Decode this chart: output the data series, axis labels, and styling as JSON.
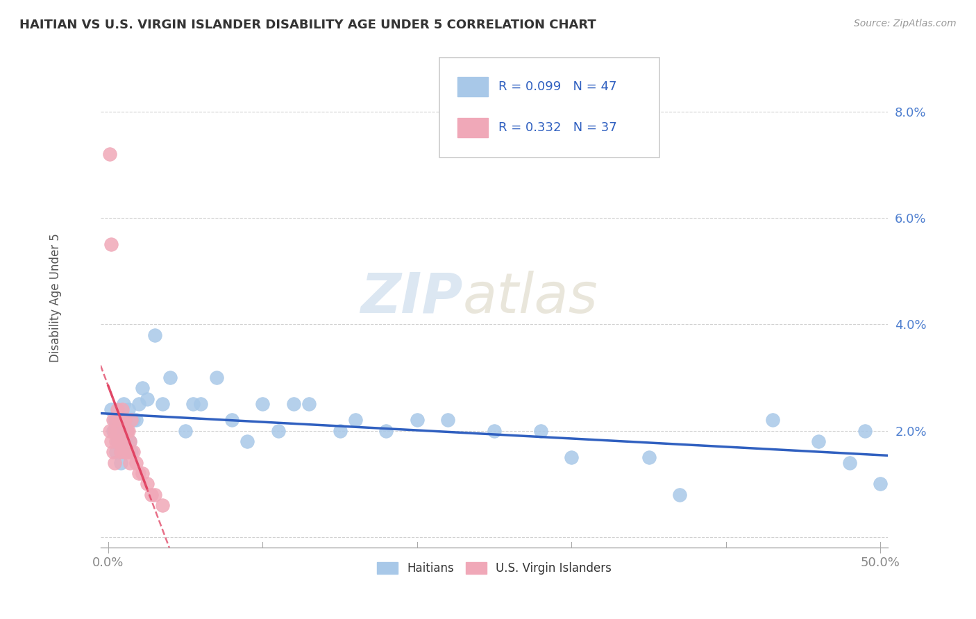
{
  "title": "HAITIAN VS U.S. VIRGIN ISLANDER DISABILITY AGE UNDER 5 CORRELATION CHART",
  "source": "Source: ZipAtlas.com",
  "ylabel": "Disability Age Under 5",
  "xlim": [
    -0.005,
    0.505
  ],
  "ylim": [
    -0.002,
    0.092
  ],
  "yticks": [
    0.0,
    0.02,
    0.04,
    0.06,
    0.08
  ],
  "yticklabels": [
    "",
    "2.0%",
    "4.0%",
    "6.0%",
    "8.0%"
  ],
  "xtick_left_label": "0.0%",
  "xtick_right_label": "50.0%",
  "xtick_left_val": 0.0,
  "xtick_right_val": 0.5,
  "legend1_R": "0.099",
  "legend1_N": "47",
  "legend2_R": "0.332",
  "legend2_N": "37",
  "blue_color": "#A8C8E8",
  "pink_color": "#F0A8B8",
  "trend_blue": "#3060C0",
  "trend_pink": "#E04060",
  "background_color": "#FFFFFF",
  "watermark_zip": "ZIP",
  "watermark_atlas": "atlas",
  "grid_color": "#CCCCCC",
  "ytick_color": "#5080D0",
  "xtick_color": "#888888",
  "blue_scatter_x": [
    0.002,
    0.003,
    0.004,
    0.005,
    0.006,
    0.007,
    0.008,
    0.009,
    0.01,
    0.011,
    0.012,
    0.013,
    0.014,
    0.015,
    0.016,
    0.018,
    0.02,
    0.022,
    0.025,
    0.03,
    0.035,
    0.04,
    0.05,
    0.055,
    0.06,
    0.07,
    0.08,
    0.09,
    0.1,
    0.11,
    0.12,
    0.13,
    0.15,
    0.16,
    0.18,
    0.2,
    0.22,
    0.25,
    0.28,
    0.3,
    0.35,
    0.37,
    0.43,
    0.46,
    0.48,
    0.49,
    0.5
  ],
  "blue_scatter_y": [
    0.024,
    0.02,
    0.022,
    0.016,
    0.018,
    0.022,
    0.014,
    0.02,
    0.025,
    0.018,
    0.02,
    0.024,
    0.018,
    0.016,
    0.022,
    0.022,
    0.025,
    0.028,
    0.026,
    0.038,
    0.025,
    0.03,
    0.02,
    0.025,
    0.025,
    0.03,
    0.022,
    0.018,
    0.025,
    0.02,
    0.025,
    0.025,
    0.02,
    0.022,
    0.02,
    0.022,
    0.022,
    0.02,
    0.02,
    0.015,
    0.015,
    0.008,
    0.022,
    0.018,
    0.014,
    0.02,
    0.01
  ],
  "pink_scatter_x": [
    0.001,
    0.001,
    0.002,
    0.002,
    0.003,
    0.003,
    0.004,
    0.004,
    0.005,
    0.005,
    0.006,
    0.006,
    0.007,
    0.007,
    0.008,
    0.008,
    0.009,
    0.009,
    0.01,
    0.01,
    0.011,
    0.011,
    0.012,
    0.012,
    0.013,
    0.013,
    0.014,
    0.014,
    0.015,
    0.016,
    0.018,
    0.02,
    0.022,
    0.025,
    0.028,
    0.03,
    0.035
  ],
  "pink_scatter_y": [
    0.072,
    0.02,
    0.055,
    0.018,
    0.022,
    0.016,
    0.02,
    0.014,
    0.022,
    0.018,
    0.024,
    0.02,
    0.022,
    0.018,
    0.022,
    0.016,
    0.024,
    0.018,
    0.022,
    0.016,
    0.022,
    0.016,
    0.02,
    0.016,
    0.02,
    0.016,
    0.018,
    0.014,
    0.022,
    0.016,
    0.014,
    0.012,
    0.012,
    0.01,
    0.008,
    0.008,
    0.006
  ]
}
